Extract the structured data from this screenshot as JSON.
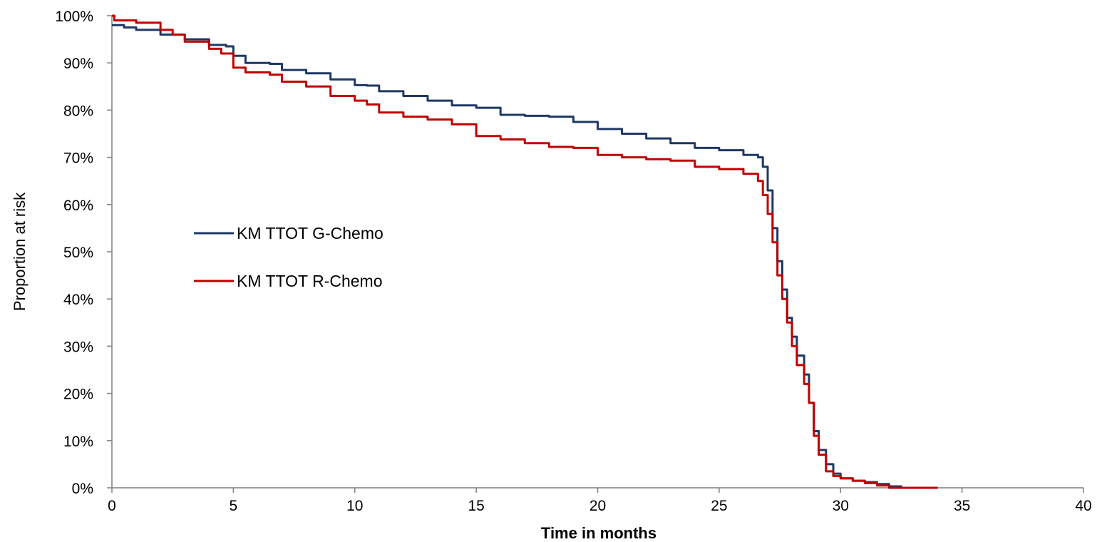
{
  "chart_data": {
    "type": "line",
    "title": "",
    "xlabel": "Time in months",
    "ylabel": "Proportion at risk",
    "xlim": [
      0,
      40
    ],
    "ylim": [
      0,
      100
    ],
    "x_ticks": [
      0,
      5,
      10,
      15,
      20,
      25,
      30,
      35,
      40
    ],
    "y_ticks": [
      0,
      10,
      20,
      30,
      40,
      50,
      60,
      70,
      80,
      90,
      100
    ],
    "y_tick_suffix": "%",
    "grid": false,
    "legend_position": "center-left",
    "series": [
      {
        "name": "KM TTOT G-Chemo",
        "color": "#1f3864",
        "points": [
          [
            0,
            98
          ],
          [
            0.5,
            97.5
          ],
          [
            1,
            97
          ],
          [
            2,
            96
          ],
          [
            3,
            95
          ],
          [
            4,
            93.8
          ],
          [
            4.7,
            93.5
          ],
          [
            5,
            91.5
          ],
          [
            5.5,
            90
          ],
          [
            6.5,
            89.8
          ],
          [
            7,
            88.5
          ],
          [
            8,
            87.8
          ],
          [
            9,
            86.5
          ],
          [
            10,
            85.3
          ],
          [
            10.5,
            85.2
          ],
          [
            11,
            84
          ],
          [
            12,
            83
          ],
          [
            13,
            82
          ],
          [
            14,
            81
          ],
          [
            15,
            80.5
          ],
          [
            16,
            79
          ],
          [
            17,
            78.8
          ],
          [
            18,
            78.6
          ],
          [
            19,
            77.5
          ],
          [
            20,
            76
          ],
          [
            21,
            75
          ],
          [
            22,
            74
          ],
          [
            23,
            73
          ],
          [
            24,
            72
          ],
          [
            25,
            71.5
          ],
          [
            26,
            70.5
          ],
          [
            26.6,
            70
          ],
          [
            26.8,
            68
          ],
          [
            27,
            63
          ],
          [
            27.2,
            55
          ],
          [
            27.4,
            48
          ],
          [
            27.6,
            42
          ],
          [
            27.8,
            36
          ],
          [
            28,
            32
          ],
          [
            28.2,
            28
          ],
          [
            28.5,
            24
          ],
          [
            28.7,
            18
          ],
          [
            28.9,
            12
          ],
          [
            29.1,
            8
          ],
          [
            29.4,
            5
          ],
          [
            29.7,
            3
          ],
          [
            30,
            2
          ],
          [
            30.5,
            1.5
          ],
          [
            31,
            1.2
          ],
          [
            31.5,
            0.8
          ],
          [
            32,
            0.3
          ],
          [
            32.5,
            0
          ],
          [
            34,
            0
          ]
        ]
      },
      {
        "name": "KM TTOT R-Chemo",
        "color": "#c00000",
        "points": [
          [
            0,
            100
          ],
          [
            0.1,
            99
          ],
          [
            1,
            98.5
          ],
          [
            2,
            97
          ],
          [
            2.5,
            96
          ],
          [
            3,
            94.5
          ],
          [
            4,
            93
          ],
          [
            4.5,
            92
          ],
          [
            5,
            89
          ],
          [
            5.5,
            88
          ],
          [
            6.5,
            87.5
          ],
          [
            7,
            86
          ],
          [
            8,
            85
          ],
          [
            9,
            83
          ],
          [
            10,
            82
          ],
          [
            10.5,
            81.2
          ],
          [
            11,
            79.5
          ],
          [
            12,
            78.6
          ],
          [
            13,
            78
          ],
          [
            14,
            77
          ],
          [
            15,
            74.5
          ],
          [
            16,
            73.8
          ],
          [
            17,
            73
          ],
          [
            18,
            72.2
          ],
          [
            19,
            72
          ],
          [
            20,
            70.5
          ],
          [
            21,
            70
          ],
          [
            22,
            69.6
          ],
          [
            23,
            69.3
          ],
          [
            24,
            68
          ],
          [
            25,
            67.5
          ],
          [
            26,
            66.5
          ],
          [
            26.6,
            65
          ],
          [
            26.8,
            62
          ],
          [
            27,
            58
          ],
          [
            27.2,
            52
          ],
          [
            27.4,
            45
          ],
          [
            27.6,
            40
          ],
          [
            27.8,
            35
          ],
          [
            28,
            30
          ],
          [
            28.2,
            26
          ],
          [
            28.5,
            22
          ],
          [
            28.7,
            18
          ],
          [
            28.9,
            11
          ],
          [
            29.1,
            7
          ],
          [
            29.4,
            3.5
          ],
          [
            29.7,
            2.5
          ],
          [
            30,
            2
          ],
          [
            30.5,
            1.5
          ],
          [
            31,
            1
          ],
          [
            31.5,
            0.5
          ],
          [
            32,
            0
          ],
          [
            34,
            0
          ]
        ]
      }
    ]
  }
}
